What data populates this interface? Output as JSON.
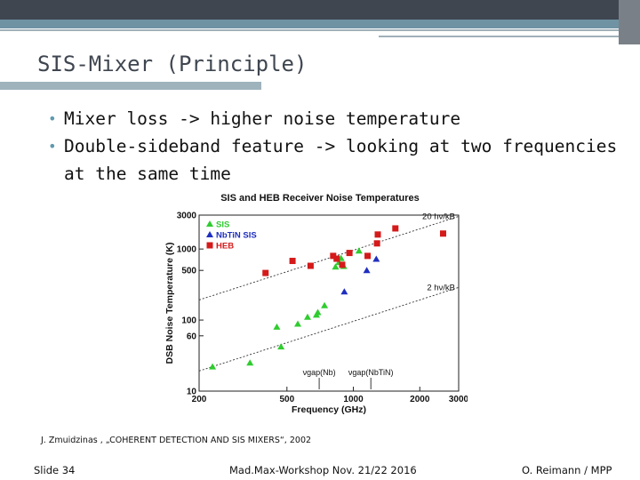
{
  "slide": {
    "title": "SIS-Mixer (Principle)",
    "bullets": [
      "Mixer loss -> higher noise temperature",
      "Double-sideband feature -> looking at two frequencies",
      "at the same time"
    ],
    "citation": "J. Zmuidzinas , „COHERENT DETECTION AND SIS MIXERS“, 2002",
    "footer_left": "Slide 34",
    "footer_center": "Mad.Max-Workshop Nov. 21/22 2016",
    "footer_right": "O. Reimann / MPP",
    "colors": {
      "accent": "#6f93a3",
      "dark": "#3f4650",
      "bullet": "#5f9aae"
    }
  },
  "chart_data": {
    "type": "scatter",
    "title": "SIS and HEB Receiver Noise Temperatures",
    "xlabel": "Frequency (GHz)",
    "ylabel": "DSB Noise Temperature (K)",
    "x_scale": "log",
    "y_scale": "log",
    "xlim": [
      200,
      3000
    ],
    "ylim": [
      10,
      3000
    ],
    "x_ticks": [
      200,
      500,
      1000,
      2000,
      3000
    ],
    "y_ticks": [
      10,
      60,
      100,
      500,
      1000,
      3000
    ],
    "legend_position": "top-left",
    "grid": false,
    "series": [
      {
        "name": "SIS",
        "marker": "triangle",
        "color": "#2fcc2f",
        "points": [
          [
            230,
            22
          ],
          [
            340,
            25
          ],
          [
            450,
            80
          ],
          [
            470,
            42
          ],
          [
            560,
            88
          ],
          [
            620,
            110
          ],
          [
            680,
            118
          ],
          [
            690,
            128
          ],
          [
            740,
            160
          ],
          [
            830,
            560
          ],
          [
            860,
            650
          ],
          [
            880,
            740
          ],
          [
            905,
            570
          ],
          [
            1060,
            940
          ]
        ]
      },
      {
        "name": "NbTiN SIS",
        "marker": "triangle",
        "color": "#1f2fbf",
        "points": [
          [
            910,
            250
          ],
          [
            1150,
            500
          ],
          [
            1270,
            720
          ]
        ]
      },
      {
        "name": "HEB",
        "marker": "square",
        "color": "#d41a1a",
        "points": [
          [
            400,
            460
          ],
          [
            530,
            680
          ],
          [
            640,
            580
          ],
          [
            810,
            800
          ],
          [
            840,
            730
          ],
          [
            890,
            600
          ],
          [
            960,
            880
          ],
          [
            1160,
            800
          ],
          [
            1280,
            1200
          ],
          [
            1290,
            1600
          ],
          [
            1550,
            1950
          ],
          [
            2550,
            1650
          ]
        ]
      }
    ],
    "reference_lines": [
      {
        "label": "20 hν/kB",
        "coefficient": 20
      },
      {
        "label": "2 hν/kB",
        "coefficient": 2
      }
    ],
    "annotations": [
      {
        "label": "νgap(Nb)",
        "x": 700
      },
      {
        "label": "νgap(NbTiN)",
        "x": 1200
      }
    ]
  }
}
